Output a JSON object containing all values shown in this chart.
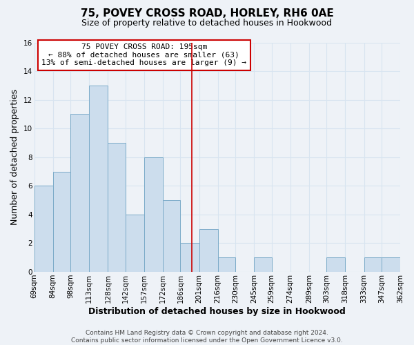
{
  "title_line1": "75, POVEY CROSS ROAD, HORLEY, RH6 0AE",
  "title_line2": "Size of property relative to detached houses in Hookwood",
  "xlabel": "Distribution of detached houses by size in Hookwood",
  "ylabel": "Number of detached properties",
  "bar_color": "#ccdded",
  "bar_edge_color": "#7aaac8",
  "vline_color": "#cc0000",
  "vline_x": 195,
  "bin_edges": [
    69,
    84,
    98,
    113,
    128,
    142,
    157,
    172,
    186,
    201,
    216,
    230,
    245,
    259,
    274,
    289,
    303,
    318,
    333,
    347,
    362
  ],
  "bin_labels": [
    "69sqm",
    "84sqm",
    "98sqm",
    "113sqm",
    "128sqm",
    "142sqm",
    "157sqm",
    "172sqm",
    "186sqm",
    "201sqm",
    "216sqm",
    "230sqm",
    "245sqm",
    "259sqm",
    "274sqm",
    "289sqm",
    "303sqm",
    "318sqm",
    "333sqm",
    "347sqm",
    "362sqm"
  ],
  "counts": [
    6,
    7,
    11,
    13,
    9,
    4,
    8,
    5,
    2,
    3,
    1,
    0,
    1,
    0,
    0,
    0,
    1,
    0,
    1,
    1
  ],
  "ylim": [
    0,
    16
  ],
  "yticks": [
    0,
    2,
    4,
    6,
    8,
    10,
    12,
    14,
    16
  ],
  "annotation_title": "75 POVEY CROSS ROAD: 195sqm",
  "annotation_line2": "← 88% of detached houses are smaller (63)",
  "annotation_line3": "13% of semi-detached houses are larger (9) →",
  "footer_line1": "Contains HM Land Registry data © Crown copyright and database right 2024.",
  "footer_line2": "Contains public sector information licensed under the Open Government Licence v3.0.",
  "background_color": "#eef2f7",
  "grid_color": "#d8e4f0",
  "title_fontsize": 11,
  "subtitle_fontsize": 9,
  "axis_label_fontsize": 9,
  "tick_fontsize": 7.5,
  "annotation_fontsize": 8,
  "footer_fontsize": 6.5
}
